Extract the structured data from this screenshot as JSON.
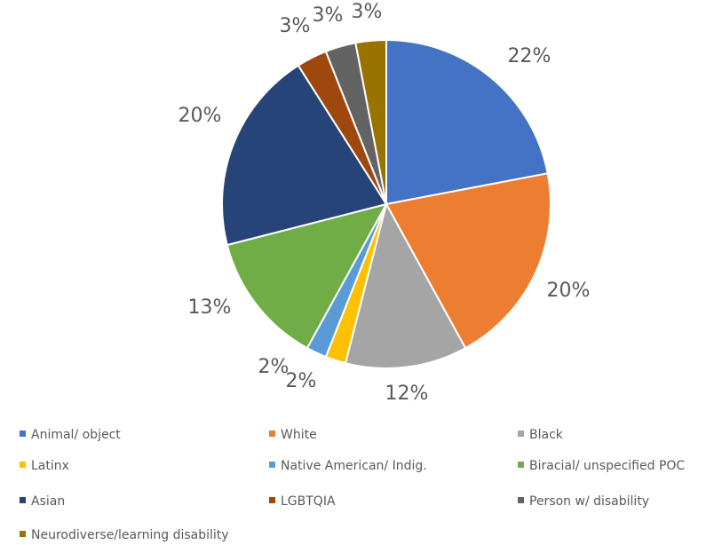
{
  "chart_data": {
    "type": "pie",
    "title": "",
    "legend_position": "bottom",
    "slices": [
      {
        "label": "Animal/ object",
        "value": 22,
        "display": "22%",
        "color": "#4472C4"
      },
      {
        "label": "White",
        "value": 20,
        "display": "20%",
        "color": "#ED7D31"
      },
      {
        "label": "Black",
        "value": 12,
        "display": "12%",
        "color": "#A5A5A5"
      },
      {
        "label": "Latinx",
        "value": 2,
        "display": "2%",
        "color": "#FFC000"
      },
      {
        "label": "Native American/ Indig.",
        "value": 2,
        "display": "2%",
        "color": "#5B9BD5"
      },
      {
        "label": "Biracial/ unspecified POC",
        "value": 13,
        "display": "13%",
        "color": "#70AD47"
      },
      {
        "label": "Asian",
        "value": 20,
        "display": "20%",
        "color": "#264478"
      },
      {
        "label": "LGBTQIA",
        "value": 3,
        "display": "3%",
        "color": "#9E480E"
      },
      {
        "label": "Person w/ disability",
        "value": 3,
        "display": "3%",
        "color": "#636363"
      },
      {
        "label": "Neurodiverse/learning disability",
        "value": 3,
        "display": "3%",
        "color": "#997300"
      }
    ]
  }
}
